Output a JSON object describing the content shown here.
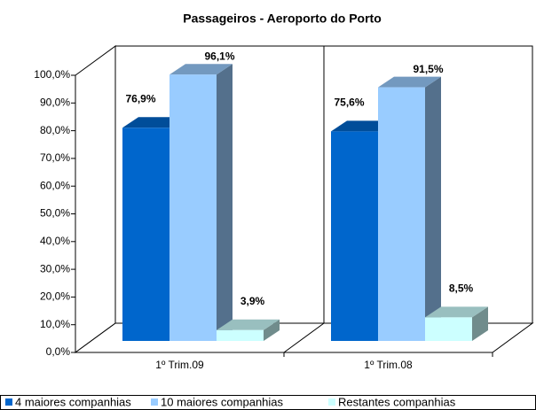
{
  "chart_data": {
    "type": "bar3d",
    "title": "Passageiros - Aeroporto do Porto",
    "categories": [
      "1º Trim.09",
      "1º Trim.08"
    ],
    "series": [
      {
        "name": "4 maiores companhias",
        "color": "#0066cc",
        "values": [
          76.9,
          75.6
        ],
        "value_labels": [
          "76,9%",
          "75,6%"
        ]
      },
      {
        "name": "10 maiores companhias",
        "color": "#99ccff",
        "values": [
          96.1,
          91.5
        ],
        "value_labels": [
          "96,1%",
          "91,5%"
        ]
      },
      {
        "name": "Restantes companhias",
        "color": "#ccffff",
        "values": [
          3.9,
          8.5
        ],
        "value_labels": [
          "3,9%",
          "8,5%"
        ]
      }
    ],
    "ylim": [
      0,
      100
    ],
    "yticks": [
      {
        "value": 0,
        "label": "0,0%"
      },
      {
        "value": 10,
        "label": "10,0%"
      },
      {
        "value": 20,
        "label": "20,0%"
      },
      {
        "value": 30,
        "label": "30,0%"
      },
      {
        "value": 40,
        "label": "40,0%"
      },
      {
        "value": 50,
        "label": "50,0%"
      },
      {
        "value": 60,
        "label": "60,0%"
      },
      {
        "value": 70,
        "label": "70,0%"
      },
      {
        "value": 80,
        "label": "80,0%"
      },
      {
        "value": 90,
        "label": "90,0%"
      },
      {
        "value": 100,
        "label": "100,0%"
      }
    ],
    "legend": "bottom"
  }
}
